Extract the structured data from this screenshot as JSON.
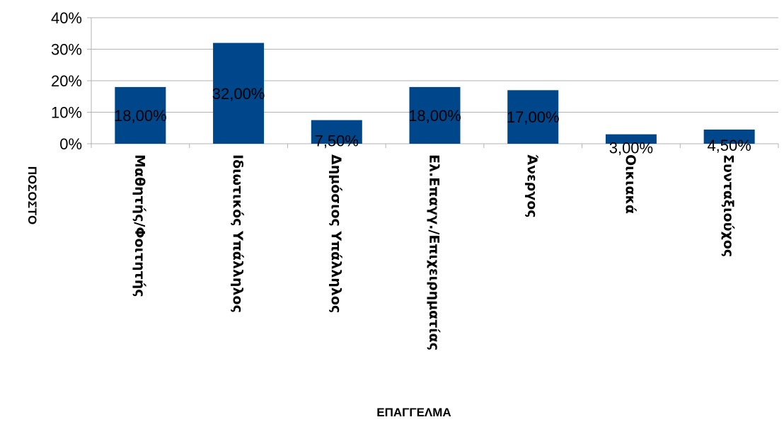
{
  "chart_data": {
    "type": "bar",
    "categories": [
      "Μαθητής/Φοιτητής",
      "Ιδιωτικός Υπάλληλος",
      "Δημόσιος Υπάλληλος",
      "Ελ.Επαγγ./Επιχειρηματίας",
      "Άνεργος",
      "Οικιακά",
      "Συνταξιούχος"
    ],
    "values": [
      18.0,
      32.0,
      7.5,
      18.0,
      17.0,
      3.0,
      4.5
    ],
    "data_labels": [
      "18,00%",
      "32,00%",
      "7,50%",
      "18,00%",
      "17,00%",
      "3,00%",
      "4,50%"
    ],
    "xlabel": "ΕΠΑΓΓΕΛΜΑ",
    "ylabel": "ΠΟΣΟΣΤΟ",
    "ylim": [
      0,
      40
    ],
    "yticks": [
      0,
      10,
      20,
      30,
      40
    ],
    "ytick_labels": [
      "0%",
      "10%",
      "20%",
      "30%",
      "40%"
    ],
    "grid": true,
    "legend": "none",
    "bar_color": "#00468B",
    "grid_color": "#B3B3B3"
  }
}
